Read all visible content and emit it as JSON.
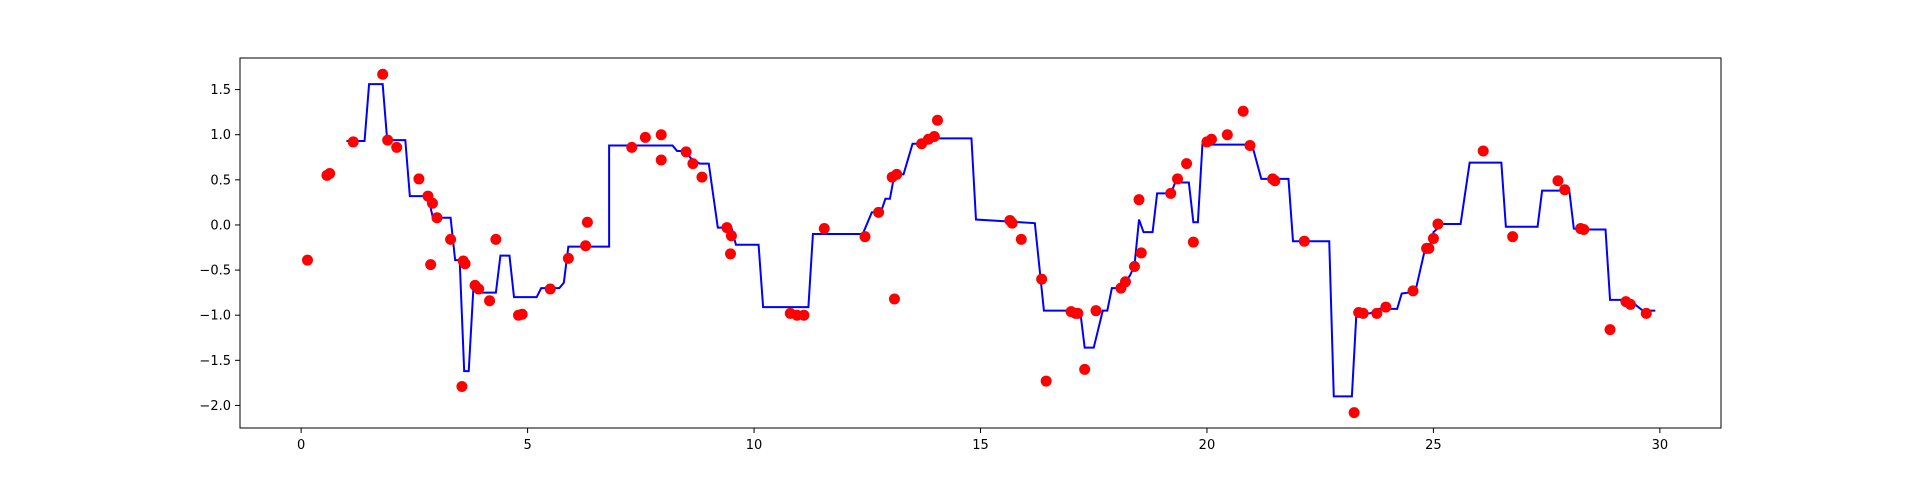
{
  "chart_data": {
    "type": "scatter",
    "title": "",
    "xlabel": "",
    "ylabel": "",
    "xlim": [
      -1.35,
      31.35
    ],
    "ylim": [
      -2.25,
      1.85
    ],
    "xticks": [
      0,
      5,
      10,
      15,
      20,
      25,
      30
    ],
    "yticks": [
      -2.0,
      -1.5,
      -1.0,
      -0.5,
      0.0,
      0.5,
      1.0,
      1.5
    ],
    "xtick_labels": [
      "0",
      "5",
      "10",
      "15",
      "20",
      "25",
      "30"
    ],
    "ytick_labels": [
      "−2.0",
      "−1.5",
      "−1.0",
      "−0.5",
      "0.0",
      "0.5",
      "1.0",
      "1.5"
    ],
    "grid": false,
    "legend": false,
    "series": [
      {
        "kind": "line",
        "color": "#0000ff",
        "points": [
          [
            1.0,
            0.93
          ],
          [
            1.4,
            0.93
          ],
          [
            1.5,
            1.56
          ],
          [
            1.8,
            1.56
          ],
          [
            1.9,
            0.94
          ],
          [
            2.3,
            0.94
          ],
          [
            2.4,
            0.32
          ],
          [
            2.8,
            0.32
          ],
          [
            2.9,
            0.1
          ],
          [
            3.0,
            0.08
          ],
          [
            3.3,
            0.08
          ],
          [
            3.4,
            -0.39
          ],
          [
            3.5,
            -0.39
          ],
          [
            3.6,
            -1.62
          ],
          [
            3.7,
            -1.62
          ],
          [
            3.8,
            -0.73
          ],
          [
            3.9,
            -0.75
          ],
          [
            4.3,
            -0.75
          ],
          [
            4.4,
            -0.34
          ],
          [
            4.6,
            -0.34
          ],
          [
            4.7,
            -0.8
          ],
          [
            5.2,
            -0.8
          ],
          [
            5.3,
            -0.7
          ],
          [
            5.7,
            -0.7
          ],
          [
            5.8,
            -0.64
          ],
          [
            5.9,
            -0.24
          ],
          [
            6.5,
            -0.24
          ],
          [
            6.8,
            -0.24
          ],
          [
            6.8,
            0.88
          ],
          [
            7.6,
            0.88
          ],
          [
            8.2,
            0.88
          ],
          [
            8.3,
            0.82
          ],
          [
            8.5,
            0.82
          ],
          [
            8.6,
            0.74
          ],
          [
            8.8,
            0.68
          ],
          [
            9.0,
            0.68
          ],
          [
            9.2,
            -0.03
          ],
          [
            9.5,
            -0.03
          ],
          [
            9.6,
            -0.22
          ],
          [
            10.1,
            -0.22
          ],
          [
            10.2,
            -0.91
          ],
          [
            11.2,
            -0.91
          ],
          [
            11.3,
            -0.1
          ],
          [
            12.4,
            -0.1
          ],
          [
            12.6,
            0.14
          ],
          [
            12.8,
            0.14
          ],
          [
            12.9,
            0.29
          ],
          [
            13.0,
            0.29
          ],
          [
            13.1,
            0.56
          ],
          [
            13.3,
            0.56
          ],
          [
            13.5,
            0.9
          ],
          [
            13.8,
            0.9
          ],
          [
            14.0,
            0.96
          ],
          [
            14.8,
            0.96
          ],
          [
            14.9,
            0.06
          ],
          [
            16.2,
            0.02
          ],
          [
            16.4,
            -0.95
          ],
          [
            17.2,
            -0.95
          ],
          [
            17.3,
            -1.36
          ],
          [
            17.5,
            -1.36
          ],
          [
            17.7,
            -0.95
          ],
          [
            17.8,
            -0.95
          ],
          [
            17.9,
            -0.7
          ],
          [
            18.1,
            -0.7
          ],
          [
            18.3,
            -0.56
          ],
          [
            18.4,
            -0.45
          ],
          [
            18.5,
            0.06
          ],
          [
            18.6,
            -0.08
          ],
          [
            18.8,
            -0.08
          ],
          [
            18.9,
            0.35
          ],
          [
            19.2,
            0.35
          ],
          [
            19.3,
            0.47
          ],
          [
            19.6,
            0.47
          ],
          [
            19.7,
            0.03
          ],
          [
            19.8,
            0.03
          ],
          [
            19.9,
            0.89
          ],
          [
            20.9,
            0.89
          ],
          [
            21.0,
            0.88
          ],
          [
            21.2,
            0.51
          ],
          [
            21.8,
            0.51
          ],
          [
            21.9,
            -0.18
          ],
          [
            22.7,
            -0.18
          ],
          [
            22.8,
            -1.9
          ],
          [
            23.2,
            -1.9
          ],
          [
            23.3,
            -0.98
          ],
          [
            23.5,
            -0.98
          ],
          [
            23.6,
            -0.98
          ],
          [
            23.7,
            -0.96
          ],
          [
            23.8,
            -0.93
          ],
          [
            24.2,
            -0.93
          ],
          [
            24.3,
            -0.76
          ],
          [
            24.6,
            -0.74
          ],
          [
            24.8,
            -0.3
          ],
          [
            25.0,
            -0.17
          ],
          [
            25.0,
            -0.08
          ],
          [
            25.2,
            0.01
          ],
          [
            25.6,
            0.01
          ],
          [
            25.8,
            0.69
          ],
          [
            26.5,
            0.69
          ],
          [
            26.6,
            -0.02
          ],
          [
            27.3,
            -0.02
          ],
          [
            27.4,
            0.38
          ],
          [
            28.0,
            0.38
          ],
          [
            28.1,
            -0.04
          ],
          [
            28.2,
            -0.05
          ],
          [
            28.8,
            -0.05
          ],
          [
            28.9,
            -0.83
          ],
          [
            29.3,
            -0.83
          ],
          [
            29.4,
            -0.86
          ],
          [
            29.6,
            -0.94
          ],
          [
            29.7,
            -0.95
          ],
          [
            29.9,
            -0.95
          ]
        ]
      },
      {
        "kind": "scatter",
        "color": "#ff0000",
        "points": [
          [
            0.14,
            -0.39
          ],
          [
            0.57,
            0.55
          ],
          [
            0.63,
            0.57
          ],
          [
            1.15,
            0.92
          ],
          [
            1.8,
            1.67
          ],
          [
            1.91,
            0.94
          ],
          [
            2.11,
            0.86
          ],
          [
            2.6,
            0.51
          ],
          [
            2.8,
            0.32
          ],
          [
            2.9,
            0.24
          ],
          [
            2.86,
            -0.44
          ],
          [
            3.0,
            0.08
          ],
          [
            3.3,
            -0.16
          ],
          [
            3.55,
            -1.79
          ],
          [
            3.58,
            -0.4
          ],
          [
            3.62,
            -0.43
          ],
          [
            3.84,
            -0.67
          ],
          [
            3.92,
            -0.71
          ],
          [
            4.16,
            -0.84
          ],
          [
            4.3,
            -0.16
          ],
          [
            4.8,
            -1.0
          ],
          [
            4.88,
            -0.99
          ],
          [
            5.5,
            -0.71
          ],
          [
            5.9,
            -0.37
          ],
          [
            6.28,
            -0.23
          ],
          [
            6.32,
            0.03
          ],
          [
            7.3,
            0.86
          ],
          [
            7.6,
            0.97
          ],
          [
            7.95,
            1.0
          ],
          [
            7.95,
            0.72
          ],
          [
            8.5,
            0.81
          ],
          [
            8.65,
            0.68
          ],
          [
            8.85,
            0.53
          ],
          [
            9.4,
            -0.03
          ],
          [
            9.5,
            -0.12
          ],
          [
            9.48,
            -0.32
          ],
          [
            10.8,
            -0.98
          ],
          [
            10.95,
            -1.0
          ],
          [
            11.1,
            -1.0
          ],
          [
            11.55,
            -0.04
          ],
          [
            12.45,
            -0.13
          ],
          [
            12.75,
            0.14
          ],
          [
            13.05,
            0.53
          ],
          [
            13.1,
            -0.82
          ],
          [
            13.15,
            0.56
          ],
          [
            13.7,
            0.9
          ],
          [
            13.85,
            0.95
          ],
          [
            13.98,
            0.98
          ],
          [
            14.05,
            1.16
          ],
          [
            15.65,
            0.05
          ],
          [
            15.7,
            0.02
          ],
          [
            15.9,
            -0.16
          ],
          [
            16.35,
            -0.6
          ],
          [
            16.45,
            -1.73
          ],
          [
            17.0,
            -0.96
          ],
          [
            17.1,
            -0.98
          ],
          [
            17.15,
            -0.98
          ],
          [
            17.3,
            -1.6
          ],
          [
            17.55,
            -0.95
          ],
          [
            18.1,
            -0.7
          ],
          [
            18.2,
            -0.63
          ],
          [
            18.4,
            -0.46
          ],
          [
            18.5,
            0.28
          ],
          [
            18.55,
            -0.31
          ],
          [
            19.2,
            0.35
          ],
          [
            19.35,
            0.51
          ],
          [
            19.55,
            0.68
          ],
          [
            19.7,
            -0.19
          ],
          [
            20.0,
            0.92
          ],
          [
            20.1,
            0.95
          ],
          [
            20.45,
            1.0
          ],
          [
            20.8,
            1.26
          ],
          [
            20.95,
            0.88
          ],
          [
            21.45,
            0.51
          ],
          [
            21.5,
            0.49
          ],
          [
            22.15,
            -0.18
          ],
          [
            23.25,
            -2.08
          ],
          [
            23.35,
            -0.97
          ],
          [
            23.45,
            -0.98
          ],
          [
            23.75,
            -0.98
          ],
          [
            23.95,
            -0.91
          ],
          [
            24.55,
            -0.73
          ],
          [
            24.85,
            -0.26
          ],
          [
            24.9,
            -0.26
          ],
          [
            25.0,
            -0.15
          ],
          [
            25.1,
            0.01
          ],
          [
            26.1,
            0.82
          ],
          [
            26.75,
            -0.13
          ],
          [
            27.75,
            0.49
          ],
          [
            27.9,
            0.39
          ],
          [
            28.25,
            -0.04
          ],
          [
            28.32,
            -0.05
          ],
          [
            28.9,
            -1.16
          ],
          [
            29.25,
            -0.85
          ],
          [
            29.35,
            -0.88
          ],
          [
            29.7,
            -0.98
          ]
        ]
      }
    ]
  }
}
